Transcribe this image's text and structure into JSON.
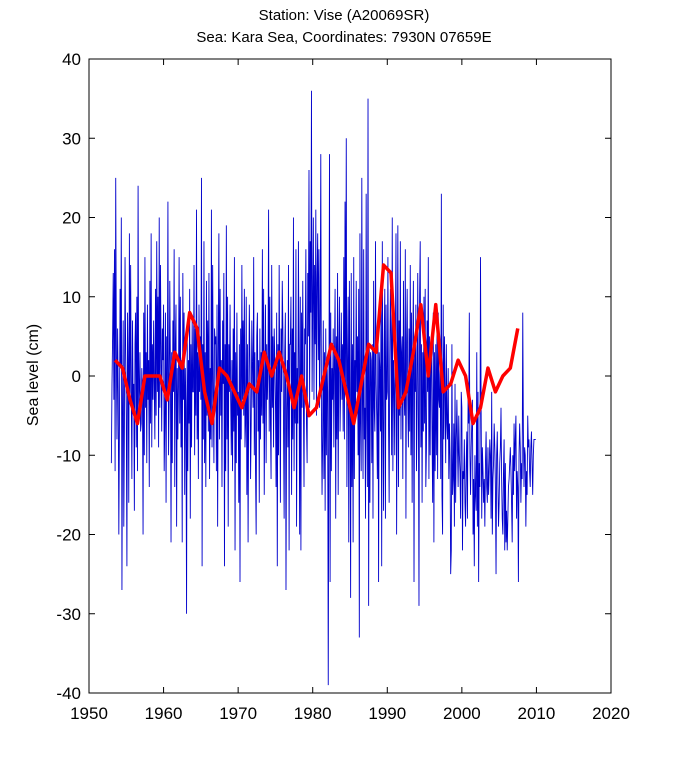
{
  "chart_data": {
    "type": "line",
    "title": "Station: Vise  (A20069SR)",
    "subtitle": "Sea: Kara Sea, Coordinates: 7930N 07659E",
    "xlabel": "",
    "ylabel": "Sea level (cm)",
    "xlim": [
      1950,
      2020
    ],
    "ylim": [
      -40,
      40
    ],
    "xticks": [
      1950,
      1960,
      1970,
      1980,
      1990,
      2000,
      2010,
      2020
    ],
    "yticks": [
      -40,
      -30,
      -20,
      -10,
      0,
      10,
      20,
      30,
      40
    ],
    "grid": false,
    "series": [
      {
        "kind": "monthly",
        "color": "#0000cc",
        "x_start": 1953.0,
        "x_step": 0.0833333,
        "values": [
          -11,
          -1,
          5,
          13,
          -3,
          16,
          -12,
          25,
          4,
          -8,
          6,
          -2,
          -20,
          -6,
          11,
          1,
          20,
          -27,
          -4,
          7,
          -19,
          -6,
          15,
          3,
          -5,
          -24,
          8,
          2,
          -16,
          18,
          -3,
          14,
          -2,
          -13,
          7,
          -4,
          -1,
          -17,
          4,
          8,
          -9,
          10,
          -12,
          24,
          -5,
          -2,
          3,
          -7,
          -6,
          1,
          -2,
          -20,
          8,
          -10,
          15,
          -4,
          3,
          -11,
          9,
          -3,
          2,
          -14,
          12,
          -6,
          18,
          -9,
          4,
          -3,
          7,
          -1,
          -8,
          11,
          -5,
          17,
          -2,
          10,
          -9,
          20,
          -4,
          14,
          3,
          -7,
          6,
          2,
          9,
          -12,
          -6,
          8,
          -16,
          5,
          -2,
          22,
          -10,
          -3,
          12,
          1,
          -21,
          3,
          -11,
          7,
          -2,
          16,
          -14,
          4,
          9,
          -19,
          1,
          -8,
          -1,
          15,
          -6,
          10,
          -9,
          2,
          -21,
          13,
          -3,
          8,
          -15,
          1,
          -4,
          -30,
          6,
          -12,
          2,
          -6,
          11,
          -18,
          4,
          -9,
          7,
          -2,
          -2,
          14,
          -10,
          6,
          -5,
          21,
          -8,
          3,
          -13,
          9,
          -2,
          5,
          -3,
          25,
          -24,
          4,
          -8,
          17,
          -11,
          3,
          -14,
          12,
          -5,
          7,
          -7,
          13,
          -13,
          1,
          -8,
          21,
          -9,
          14,
          -2,
          -11,
          6,
          4,
          5,
          -12,
          9,
          -19,
          3,
          18,
          -8,
          11,
          -5,
          2,
          -14,
          7,
          -1,
          13,
          -24,
          4,
          -12,
          19,
          -8,
          10,
          -19,
          4,
          -2,
          9,
          -3,
          -10,
          2,
          -12,
          6,
          -7,
          15,
          -22,
          3,
          -11,
          8,
          -5,
          -2,
          -16,
          4,
          -26,
          6,
          -8,
          14,
          -3,
          7,
          -5,
          11,
          -9,
          -6,
          10,
          -15,
          4,
          -21,
          -3,
          9,
          2,
          -13,
          -6,
          7,
          1,
          -4,
          15,
          -10,
          3,
          -12,
          -20,
          5,
          8,
          -7,
          2,
          -16,
          6,
          -8,
          3,
          -5,
          16,
          -6,
          11,
          -15,
          -2,
          9,
          -11,
          4,
          -3,
          1,
          21,
          -7,
          10,
          -6,
          -13,
          14,
          -4,
          5,
          -9,
          6,
          2,
          -3,
          -14,
          8,
          -24,
          4,
          -10,
          14,
          -1,
          -16,
          6,
          -2,
          12,
          6,
          -6,
          -18,
          3,
          8,
          -27,
          -4,
          2,
          -9,
          14,
          -22,
          4,
          4,
          10,
          -15,
          6,
          -8,
          20,
          -12,
          3,
          -6,
          16,
          -19,
          1,
          -6,
          17,
          2,
          -20,
          10,
          -22,
          8,
          -4,
          12,
          -3,
          -14,
          6,
          4,
          16,
          -6,
          -11,
          13,
          5,
          26,
          -4,
          17,
          8,
          36,
          -2,
          9,
          20,
          -3,
          14,
          4,
          21,
          -5,
          12,
          18,
          2,
          16,
          -4,
          6,
          28,
          -4,
          -15,
          -8,
          7,
          -13,
          3,
          -17,
          6,
          -10,
          2,
          -2,
          -39,
          -6,
          28,
          -26,
          8,
          -12,
          1,
          -3,
          6,
          -9,
          2,
          11,
          -18,
          5,
          -8,
          13,
          -15,
          3,
          10,
          -7,
          -1,
          8,
          -3,
          4,
          -7,
          15,
          -8,
          22,
          -1,
          30,
          -14,
          1,
          10,
          -21,
          12,
          -3,
          -28,
          13,
          -14,
          4,
          -21,
          15,
          -13,
          2,
          -4,
          12,
          -2,
          5,
          -10,
          11,
          -33,
          18,
          -6,
          -12,
          25,
          -3,
          -13,
          16,
          -8,
          -4,
          -18,
          23,
          -5,
          -14,
          35,
          -29,
          4,
          -16,
          3,
          2,
          -11,
          4,
          -18,
          12,
          -4,
          -7,
          17,
          -1,
          -5,
          -13,
          7,
          -26,
          3,
          1,
          -7,
          10,
          -24,
          17,
          -5,
          -17,
          4,
          11,
          -18,
          9,
          -3,
          -2,
          15,
          -6,
          -16,
          2,
          11,
          5,
          -10,
          20,
          -12,
          2,
          -1,
          -10,
          4,
          18,
          -20,
          -2,
          19,
          -14,
          7,
          -5,
          17,
          -8,
          3,
          5,
          -13,
          12,
          -2,
          -5,
          16,
          -18,
          4,
          11,
          -3,
          -9,
          6,
          -7,
          14,
          -10,
          8,
          -16,
          3,
          12,
          -26,
          5,
          -2,
          9,
          -12,
          -4,
          13,
          -2,
          -29,
          10,
          17,
          -9,
          4,
          -16,
          3,
          -7,
          10,
          -6,
          11,
          -14,
          -9,
          7,
          -2,
          15,
          -13,
          5,
          -10,
          2,
          4,
          -7,
          -16,
          8,
          -21,
          3,
          -12,
          4,
          -10,
          6,
          -13,
          8,
          -3,
          -4,
          3,
          -13,
          23,
          -15,
          -20,
          9,
          -8,
          5,
          -2,
          -11,
          4,
          -6,
          -8,
          1,
          -13,
          -6,
          -10,
          -25,
          -22,
          4,
          -15,
          -13,
          -6,
          -19,
          -1,
          -16,
          -8,
          -3,
          -9,
          -14,
          -5,
          -10,
          -12,
          -18,
          -2,
          -4,
          -22,
          -12,
          -13,
          -8,
          -16,
          -19,
          -11,
          -7,
          -18,
          -3,
          -6,
          8,
          -10,
          -15,
          -9,
          -6,
          -3,
          -20,
          -13,
          -24,
          -10,
          -15,
          -17,
          3,
          -19,
          -2,
          -26,
          -11,
          -14,
          15,
          -4,
          -18,
          -9,
          -12,
          -16,
          -13,
          -19,
          -11,
          -7,
          -14,
          -16,
          -9,
          -15,
          -12,
          -8,
          -10,
          -18,
          -2,
          -20,
          -13,
          -11,
          -6,
          -9,
          -14,
          -25,
          -10,
          -7,
          -13,
          -19,
          -16,
          -11,
          -9,
          -4,
          -13,
          -18,
          -20,
          -12,
          -8,
          -22,
          -11,
          -21,
          -17,
          -22,
          -18,
          -14,
          -13,
          -11,
          -9,
          -12,
          -16,
          -21,
          -10,
          -15,
          -6,
          -12,
          -8,
          -5,
          -18,
          -12,
          -14,
          -26,
          -10,
          -6,
          -9,
          -16,
          -11,
          -13,
          8,
          -7,
          -14,
          -9,
          -10,
          -19,
          -12,
          -15,
          -5,
          -9,
          -8,
          -12,
          -14,
          -9,
          -7,
          -11,
          -15,
          -10,
          -8,
          -8,
          -8,
          -8
        ]
      },
      {
        "kind": "annual",
        "color": "#ff0000",
        "x": [
          1953.5,
          1954.5,
          1955.5,
          1956.5,
          1957.5,
          1958.5,
          1959.5,
          1960.5,
          1961.5,
          1962.5,
          1963.5,
          1964.5,
          1965.5,
          1966.5,
          1967.5,
          1968.5,
          1969.5,
          1970.5,
          1971.5,
          1972.5,
          1973.5,
          1974.5,
          1975.5,
          1976.5,
          1977.5,
          1978.5,
          1979.5,
          1980.5,
          1981.5,
          1982.5,
          1983.5,
          1984.5,
          1985.5,
          1986.5,
          1987.5,
          1988.5,
          1989.5,
          1990.5,
          1991.5,
          1992.5,
          1993.5,
          1994.5,
          1995.5,
          1996.5,
          1997.5,
          1998.5,
          1999.5,
          2000.5,
          2001.5,
          2002.5,
          2003.5,
          2004.5,
          2005.5,
          2006.5,
          2007.5
        ],
        "values": [
          2,
          1,
          -3,
          -6,
          0,
          0,
          0,
          -3,
          3,
          1,
          8,
          6,
          -2,
          -6,
          1,
          0,
          -2,
          -4,
          -1,
          -2,
          3,
          0,
          3,
          0,
          -4,
          0,
          -5,
          -4,
          0,
          4,
          2,
          -2,
          -6,
          -1,
          4,
          3,
          14,
          13,
          -4,
          -2,
          3,
          9,
          0,
          9,
          -2,
          -1,
          2,
          0,
          -6,
          -4,
          1,
          -2,
          0,
          1,
          6
        ]
      }
    ]
  }
}
